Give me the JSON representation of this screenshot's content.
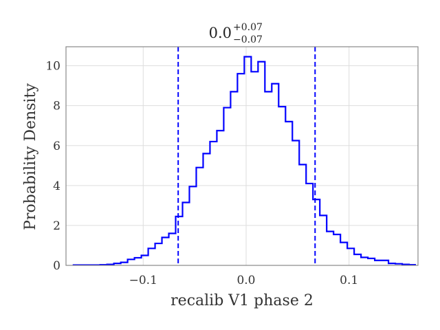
{
  "chart_data": {
    "type": "histogram",
    "title": {
      "value": "0.0",
      "upper": "+0.07",
      "lower": "−0.07"
    },
    "xlabel": "recalib V1 phase 2",
    "ylabel": "Probability Density",
    "xlim": [
      -0.175,
      0.167
    ],
    "ylim": [
      0,
      10.95
    ],
    "xticks": [
      {
        "value": -0.1,
        "label": "−0.1"
      },
      {
        "value": 0.0,
        "label": "0.0"
      },
      {
        "value": 0.1,
        "label": "0.1"
      }
    ],
    "yticks": [
      {
        "value": 0,
        "label": "0"
      },
      {
        "value": 2,
        "label": "2"
      },
      {
        "value": 4,
        "label": "4"
      },
      {
        "value": 6,
        "label": "6"
      },
      {
        "value": 8,
        "label": "8"
      },
      {
        "value": 10,
        "label": "10"
      }
    ],
    "grid": true,
    "color": "#0000ff",
    "bin_start": -0.1685,
    "bin_width": 0.00667,
    "density": [
      0.02,
      0.02,
      0.02,
      0.02,
      0.03,
      0.05,
      0.1,
      0.15,
      0.3,
      0.38,
      0.5,
      0.85,
      1.1,
      1.4,
      1.6,
      2.45,
      3.15,
      3.95,
      4.9,
      5.6,
      6.2,
      6.75,
      7.9,
      8.7,
      9.6,
      10.45,
      9.7,
      10.2,
      8.7,
      9.1,
      7.95,
      7.2,
      6.25,
      5.05,
      4.1,
      3.3,
      2.5,
      1.7,
      1.55,
      1.15,
      0.85,
      0.55,
      0.4,
      0.35,
      0.25,
      0.25,
      0.1,
      0.08,
      0.05,
      0.03
    ],
    "quantile_lines": [
      -0.066,
      0.067
    ]
  }
}
